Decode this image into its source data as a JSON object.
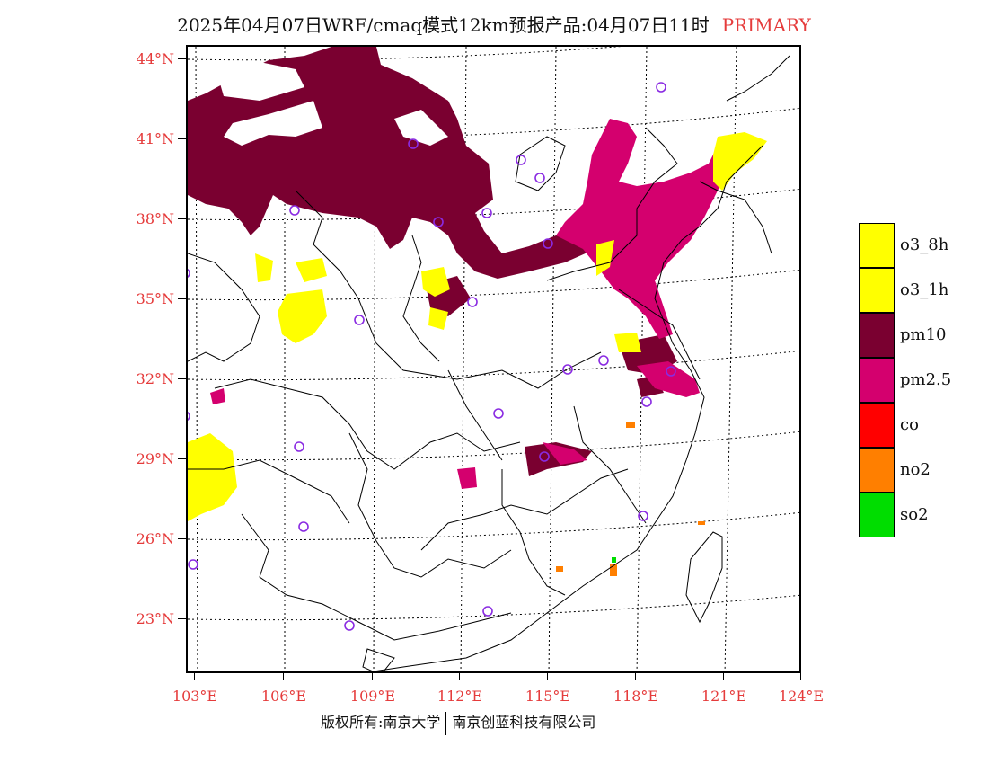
{
  "title": {
    "main": "2025年04月07日WRF/cmaq模式12km预报产品:04月07日11时",
    "tag": "PRIMARY"
  },
  "lat_labels": [
    "44°N",
    "41°N",
    "38°N",
    "35°N",
    "32°N",
    "29°N",
    "26°N",
    "23°N"
  ],
  "lon_labels": [
    "103°E",
    "106°E",
    "109°E",
    "112°E",
    "115°E",
    "118°E",
    "121°E",
    "124°E"
  ],
  "legend": [
    {
      "label": "o3_8h",
      "color": "#ffff00"
    },
    {
      "label": "o3_1h",
      "color": "#ffff00"
    },
    {
      "label": "pm10",
      "color": "#7a0030"
    },
    {
      "label": "pm2.5",
      "color": "#d4006e"
    },
    {
      "label": "co",
      "color": "#ff0000"
    },
    {
      "label": "no2",
      "color": "#ff7f00"
    },
    {
      "label": "so2",
      "color": "#00dd00"
    }
  ],
  "footer": {
    "left": "版权所有:南京大学",
    "right": "南京创蓝科技有限公司"
  }
}
